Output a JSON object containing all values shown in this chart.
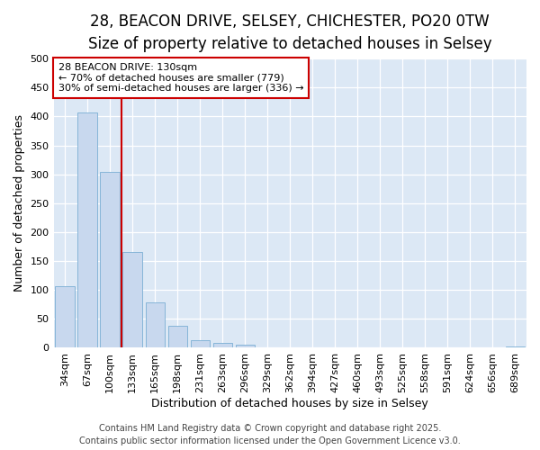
{
  "title_line1": "28, BEACON DRIVE, SELSEY, CHICHESTER, PO20 0TW",
  "title_line2": "Size of property relative to detached houses in Selsey",
  "categories": [
    "34sqm",
    "67sqm",
    "100sqm",
    "133sqm",
    "165sqm",
    "198sqm",
    "231sqm",
    "263sqm",
    "296sqm",
    "329sqm",
    "362sqm",
    "394sqm",
    "427sqm",
    "460sqm",
    "493sqm",
    "525sqm",
    "558sqm",
    "591sqm",
    "624sqm",
    "656sqm",
    "689sqm"
  ],
  "values": [
    107,
    407,
    304,
    165,
    78,
    38,
    13,
    8,
    5,
    0,
    0,
    0,
    0,
    0,
    0,
    0,
    0,
    0,
    0,
    0,
    3
  ],
  "bar_color": "#c8d8ee",
  "bar_edge_color": "#7aaed4",
  "vline_x": 2.5,
  "vline_color": "#cc0000",
  "ylabel": "Number of detached properties",
  "xlabel": "Distribution of detached houses by size in Selsey",
  "annotation_title": "28 BEACON DRIVE: 130sqm",
  "annotation_line2": "← 70% of detached houses are smaller (779)",
  "annotation_line3": "30% of semi-detached houses are larger (336) →",
  "annotation_box_color": "#cc0000",
  "footer_line1": "Contains HM Land Registry data © Crown copyright and database right 2025.",
  "footer_line2": "Contains public sector information licensed under the Open Government Licence v3.0.",
  "plot_bg_color": "#dce8f5",
  "fig_bg_color": "#ffffff",
  "ylim": [
    0,
    500
  ],
  "yticks": [
    0,
    50,
    100,
    150,
    200,
    250,
    300,
    350,
    400,
    450,
    500
  ],
  "title_fontsize": 12,
  "subtitle_fontsize": 10,
  "axis_label_fontsize": 9,
  "tick_fontsize": 8,
  "annotation_fontsize": 8,
  "footer_fontsize": 7
}
